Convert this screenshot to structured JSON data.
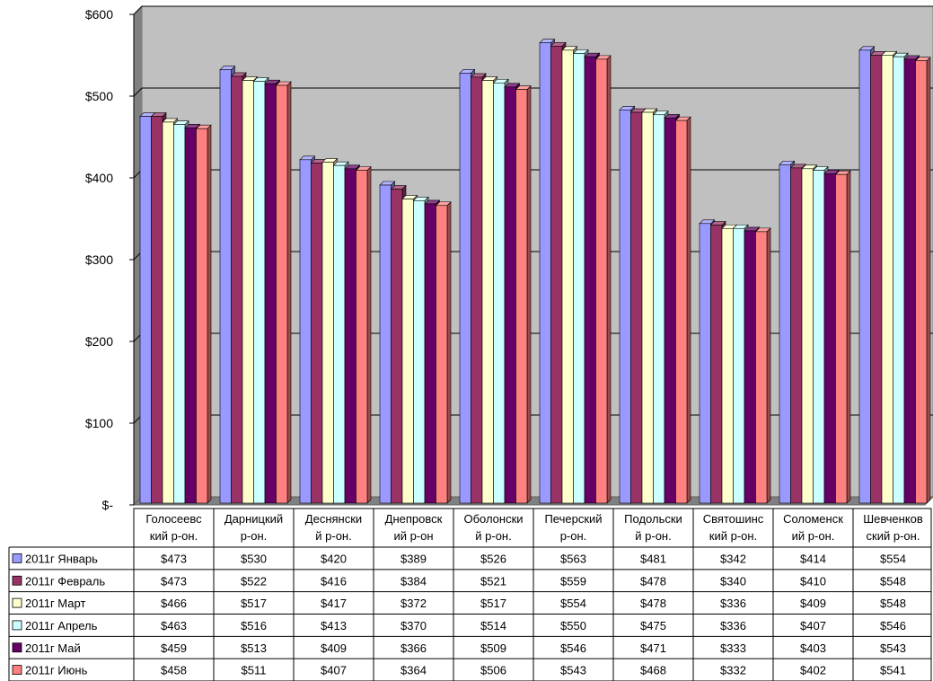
{
  "chart_data": {
    "type": "bar",
    "variant": "3d-clustered-column-with-data-table",
    "y_axis": {
      "ticks": [
        "$-",
        "$100",
        "$200",
        "$300",
        "$400",
        "$500",
        "$600"
      ],
      "ylim": [
        0,
        600
      ]
    },
    "categories": [
      [
        "Голосеевс",
        "кий р-он."
      ],
      [
        "Дарницкий",
        "р-он."
      ],
      [
        "Деснянски",
        "й р-он."
      ],
      [
        "Днепровск",
        "ий р-он"
      ],
      [
        "Оболонски",
        "й р-он."
      ],
      [
        "Печерский",
        "р-он."
      ],
      [
        "Подольски",
        "й р-он."
      ],
      [
        "Святошинс",
        "кий р-он."
      ],
      [
        "Соломенск",
        "ий р-он."
      ],
      [
        "Шевченков",
        "ский р-он."
      ]
    ],
    "series": [
      {
        "name": "2011г Январь",
        "color": "#9999ff",
        "values": [
          473,
          530,
          420,
          389,
          526,
          563,
          481,
          342,
          414,
          554
        ],
        "labels": [
          "$473",
          "$530",
          "$420",
          "$389",
          "$526",
          "$563",
          "$481",
          "$342",
          "$414",
          "$554"
        ]
      },
      {
        "name": "2011г Февраль",
        "color": "#993366",
        "values": [
          473,
          522,
          416,
          384,
          521,
          559,
          478,
          340,
          410,
          548
        ],
        "labels": [
          "$473",
          "$522",
          "$416",
          "$384",
          "$521",
          "$559",
          "$478",
          "$340",
          "$410",
          "$548"
        ]
      },
      {
        "name": "2011г Март",
        "color": "#ffffcc",
        "values": [
          466,
          517,
          417,
          372,
          517,
          554,
          478,
          336,
          409,
          548
        ],
        "labels": [
          "$466",
          "$517",
          "$417",
          "$372",
          "$517",
          "$554",
          "$478",
          "$336",
          "$409",
          "$548"
        ]
      },
      {
        "name": "2011г Апрель",
        "color": "#ccffff",
        "values": [
          463,
          516,
          413,
          370,
          514,
          550,
          475,
          336,
          407,
          546
        ],
        "labels": [
          "$463",
          "$516",
          "$413",
          "$370",
          "$514",
          "$550",
          "$475",
          "$336",
          "$407",
          "$546"
        ]
      },
      {
        "name": "2011г Май",
        "color": "#660066",
        "values": [
          459,
          513,
          409,
          366,
          509,
          546,
          471,
          333,
          403,
          543
        ],
        "labels": [
          "$459",
          "$513",
          "$409",
          "$366",
          "$509",
          "$546",
          "$471",
          "$333",
          "$403",
          "$543"
        ]
      },
      {
        "name": "2011г Июнь",
        "color": "#ff8080",
        "values": [
          458,
          511,
          407,
          364,
          506,
          543,
          468,
          332,
          402,
          541
        ],
        "labels": [
          "$458",
          "$511",
          "$407",
          "$364",
          "$506",
          "$543",
          "$468",
          "$332",
          "$402",
          "$541"
        ]
      }
    ],
    "grid": true,
    "legend": "data-table-left",
    "colors": {
      "wall": "#c0c0c0",
      "floor": "#808080",
      "gridline": "#000000"
    }
  }
}
